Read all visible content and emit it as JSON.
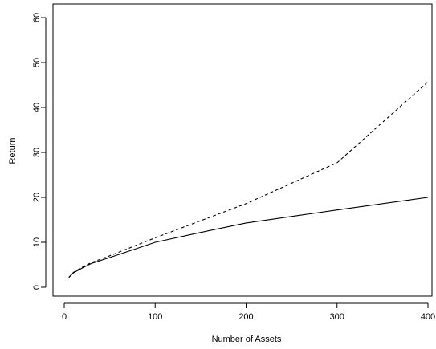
{
  "chart_data": {
    "type": "line",
    "xlabel": "Number of Assets",
    "ylabel": "Return",
    "xlim": [
      0,
      400
    ],
    "ylim": [
      0,
      60
    ],
    "x_ticks": [
      0,
      100,
      200,
      300,
      400
    ],
    "y_ticks": [
      0,
      10,
      20,
      30,
      40,
      50,
      60
    ],
    "grid": false,
    "series": [
      {
        "style": "solid",
        "x": [
          5,
          10,
          20,
          30,
          50,
          100,
          150,
          200,
          300,
          400
        ],
        "y": [
          2.2,
          3.2,
          4.3,
          5.3,
          6.6,
          10.0,
          12.2,
          14.3,
          17.2,
          20.0
        ]
      },
      {
        "style": "dashed",
        "x": [
          5,
          10,
          20,
          30,
          50,
          100,
          150,
          200,
          300,
          400
        ],
        "y": [
          2.2,
          3.3,
          4.5,
          5.5,
          7.0,
          11.0,
          14.8,
          18.6,
          27.7,
          45.7
        ]
      }
    ]
  }
}
